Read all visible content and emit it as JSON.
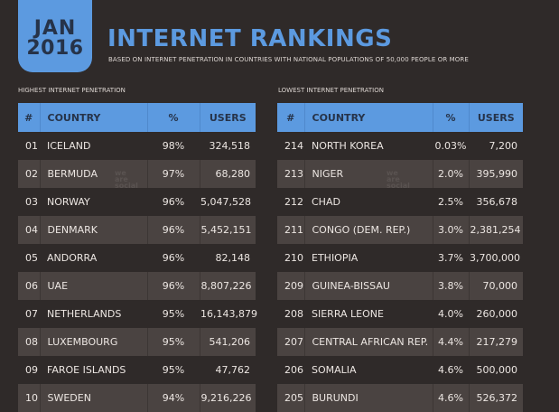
{
  "header": {
    "month": "JAN",
    "year": "2016",
    "title": "INTERNET RANKINGS",
    "subtitle": "BASED ON INTERNET PENETRATION IN COUNTRIES WITH NATIONAL POPULATIONS OF 50,000 PEOPLE OR MORE"
  },
  "columns": {
    "rank": "#",
    "country": "COUNTRY",
    "pct": "%",
    "users": "USERS"
  },
  "watermark": [
    "we",
    "are",
    "social"
  ],
  "highest": {
    "label": "HIGHEST INTERNET PENETRATION",
    "rows": [
      {
        "rank": "01",
        "country": "ICELAND",
        "pct": "98%",
        "users": "324,518"
      },
      {
        "rank": "02",
        "country": "BERMUDA",
        "pct": "97%",
        "users": "68,280"
      },
      {
        "rank": "03",
        "country": "NORWAY",
        "pct": "96%",
        "users": "5,047,528"
      },
      {
        "rank": "04",
        "country": "DENMARK",
        "pct": "96%",
        "users": "5,452,151"
      },
      {
        "rank": "05",
        "country": "ANDORRA",
        "pct": "96%",
        "users": "82,148"
      },
      {
        "rank": "06",
        "country": "UAE",
        "pct": "96%",
        "users": "8,807,226"
      },
      {
        "rank": "07",
        "country": "NETHERLANDS",
        "pct": "95%",
        "users": "16,143,879"
      },
      {
        "rank": "08",
        "country": "LUXEMBOURG",
        "pct": "95%",
        "users": "541,206"
      },
      {
        "rank": "09",
        "country": "FAROE ISLANDS",
        "pct": "95%",
        "users": "47,762"
      },
      {
        "rank": "10",
        "country": "SWEDEN",
        "pct": "94%",
        "users": "9,216,226"
      }
    ]
  },
  "lowest": {
    "label": "LOWEST INTERNET PENETRATION",
    "rows": [
      {
        "rank": "214",
        "country": "NORTH KOREA",
        "pct": "0.03%",
        "users": "7,200"
      },
      {
        "rank": "213",
        "country": "NIGER",
        "pct": "2.0%",
        "users": "395,990"
      },
      {
        "rank": "212",
        "country": "CHAD",
        "pct": "2.5%",
        "users": "356,678"
      },
      {
        "rank": "211",
        "country": "CONGO (DEM. REP.)",
        "pct": "3.0%",
        "users": "2,381,254"
      },
      {
        "rank": "210",
        "country": "ETHIOPIA",
        "pct": "3.7%",
        "users": "3,700,000"
      },
      {
        "rank": "209",
        "country": "GUINEA-BISSAU",
        "pct": "3.8%",
        "users": "70,000"
      },
      {
        "rank": "208",
        "country": "SIERRA LEONE",
        "pct": "4.0%",
        "users": "260,000"
      },
      {
        "rank": "207",
        "country": "CENTRAL AFRICAN REP.",
        "pct": "4.4%",
        "users": "217,279"
      },
      {
        "rank": "206",
        "country": "SOMALIA",
        "pct": "4.6%",
        "users": "500,000"
      },
      {
        "rank": "205",
        "country": "BURUNDI",
        "pct": "4.6%",
        "users": "526,372"
      }
    ]
  },
  "colors": {
    "accent": "#5c9ae0",
    "background": "#2f2a29",
    "row_alt": "#4a4341",
    "header_text": "#263349"
  }
}
